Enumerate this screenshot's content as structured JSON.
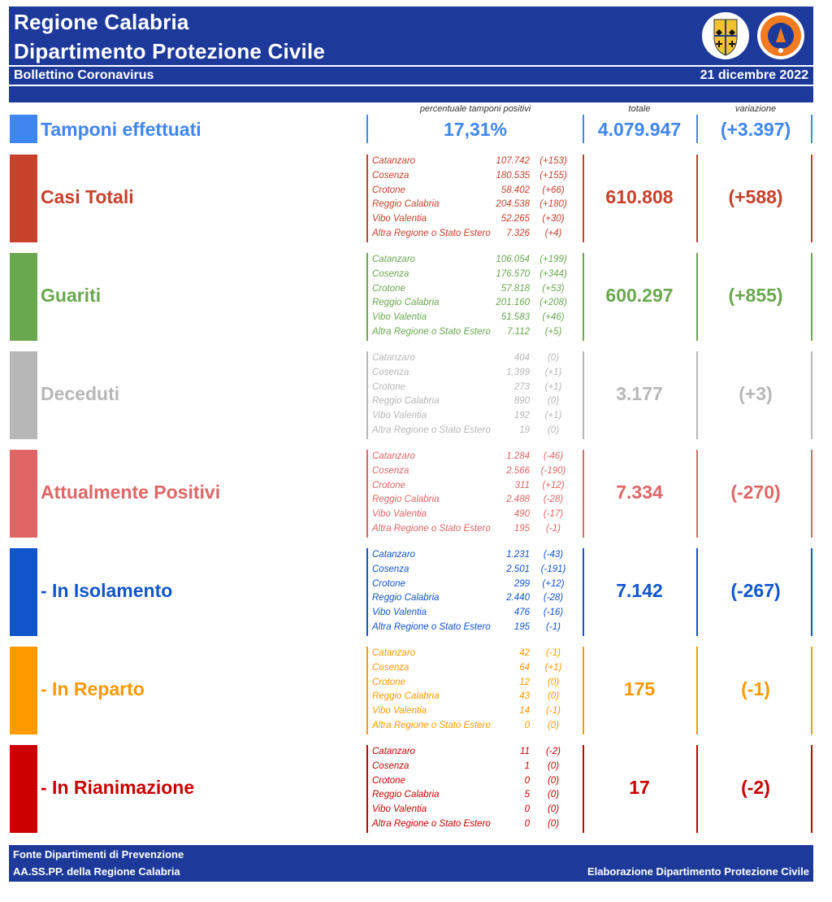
{
  "header": {
    "title_line1": "Regione Calabria",
    "title_line2": "Dipartimento Protezione Civile",
    "bulletin": "Bollettino Coronavirus",
    "date": "21 dicembre 2022",
    "logo_text": "PROTEZIONE CIVILE · Regione Calabria"
  },
  "columns": {
    "percent": "percentuale tamponi positivi",
    "total": "totale",
    "change": "variazione"
  },
  "tamponi": {
    "label": "Tamponi effettuati",
    "percent": "17,31%",
    "total": "4.079.947",
    "change": "(+3.397)",
    "color": "#3f86f0"
  },
  "sections": [
    {
      "label": "Casi Totali",
      "total": "610.808",
      "change": "(+588)",
      "color": "#c8412b",
      "rows": [
        {
          "name": "Catanzaro",
          "value": "107.742",
          "change": "(+153)"
        },
        {
          "name": "Cosenza",
          "value": "180.535",
          "change": "(+155)"
        },
        {
          "name": "Crotone",
          "value": "58.402",
          "change": "(+66)"
        },
        {
          "name": "Reggio Calabria",
          "value": "204.538",
          "change": "(+180)"
        },
        {
          "name": "Vibo Valentia",
          "value": "52.265",
          "change": "(+30)"
        },
        {
          "name": "Altra Regione o Stato Estero",
          "value": "7.326",
          "change": "(+4)"
        }
      ]
    },
    {
      "label": "Guariti",
      "total": "600.297",
      "change": "(+855)",
      "color": "#6aa84f",
      "rows": [
        {
          "name": "Catanzaro",
          "value": "106.054",
          "change": "(+199)"
        },
        {
          "name": "Cosenza",
          "value": "176.570",
          "change": "(+344)"
        },
        {
          "name": "Crotone",
          "value": "57.818",
          "change": "(+53)"
        },
        {
          "name": "Reggio Calabria",
          "value": "201.160",
          "change": "(+208)"
        },
        {
          "name": "Vibo Valentia",
          "value": "51.583",
          "change": "(+46)"
        },
        {
          "name": "Altra Regione o Stato Estero",
          "value": "7.112",
          "change": "(+5)"
        }
      ]
    },
    {
      "label": "Deceduti",
      "total": "3.177",
      "change": "(+3)",
      "color": "#b7b7b7",
      "rows": [
        {
          "name": "Catanzaro",
          "value": "404",
          "change": "(0)"
        },
        {
          "name": "Cosenza",
          "value": "1.399",
          "change": "(+1)"
        },
        {
          "name": "Crotone",
          "value": "273",
          "change": "(+1)"
        },
        {
          "name": "Reggio Calabria",
          "value": "890",
          "change": "(0)"
        },
        {
          "name": "Vibo Valentia",
          "value": "192",
          "change": "(+1)"
        },
        {
          "name": "Altra Regione o Stato Estero",
          "value": "19",
          "change": "(0)"
        }
      ]
    },
    {
      "label": "Attualmente Positivi",
      "total": "7.334",
      "change": "(-270)",
      "color": "#e06666",
      "rows": [
        {
          "name": "Catanzaro",
          "value": "1.284",
          "change": "(-46)"
        },
        {
          "name": "Cosenza",
          "value": "2.566",
          "change": "(-190)"
        },
        {
          "name": "Crotone",
          "value": "311",
          "change": "(+12)"
        },
        {
          "name": "Reggio Calabria",
          "value": "2.488",
          "change": "(-28)"
        },
        {
          "name": "Vibo Valentia",
          "value": "490",
          "change": "(-17)"
        },
        {
          "name": "Altra Regione o Stato Estero",
          "value": "195",
          "change": "(-1)"
        }
      ]
    },
    {
      "label": " - In Isolamento",
      "total": "7.142",
      "change": "(-267)",
      "color": "#1155cc",
      "rows": [
        {
          "name": "Catanzaro",
          "value": "1.231",
          "change": "(-43)"
        },
        {
          "name": "Cosenza",
          "value": "2.501",
          "change": "(-191)"
        },
        {
          "name": "Crotone",
          "value": "299",
          "change": "(+12)"
        },
        {
          "name": "Reggio Calabria",
          "value": "2.440",
          "change": "(-28)"
        },
        {
          "name": "Vibo Valentia",
          "value": "476",
          "change": "(-16)"
        },
        {
          "name": "Altra Regione o Stato Estero",
          "value": "195",
          "change": "(-1)"
        }
      ]
    },
    {
      "label": " - In Reparto",
      "total": "175",
      "change": "(-1)",
      "color": "#ff9900",
      "rows": [
        {
          "name": "Catanzaro",
          "value": "42",
          "change": "(-1)"
        },
        {
          "name": "Cosenza",
          "value": "64",
          "change": "(+1)"
        },
        {
          "name": "Crotone",
          "value": "12",
          "change": "(0)"
        },
        {
          "name": "Reggio Calabria",
          "value": "43",
          "change": "(0)"
        },
        {
          "name": "Vibo Valentia",
          "value": "14",
          "change": "(-1)"
        },
        {
          "name": "Altra Regione o Stato Estero",
          "value": "0",
          "change": "(0)"
        }
      ]
    },
    {
      "label": " - In Rianimazione",
      "total": "17",
      "change": "(-2)",
      "color": "#cc0000",
      "rows": [
        {
          "name": "Catanzaro",
          "value": "11",
          "change": "(-2)"
        },
        {
          "name": "Cosenza",
          "value": "1",
          "change": "(0)"
        },
        {
          "name": "Crotone",
          "value": "0",
          "change": "(0)"
        },
        {
          "name": "Reggio Calabria",
          "value": "5",
          "change": "(0)"
        },
        {
          "name": "Vibo Valentia",
          "value": "0",
          "change": "(0)"
        },
        {
          "name": "Altra Regione o Stato Estero",
          "value": "0",
          "change": "(0)"
        }
      ]
    }
  ],
  "footer": {
    "source_line1": "Fonte Dipartimenti di Prevenzione",
    "source_line2": "AA.SS.PP.  della Regione Calabria",
    "elaboration": "Elaborazione Dipartimento Protezione Civile"
  }
}
